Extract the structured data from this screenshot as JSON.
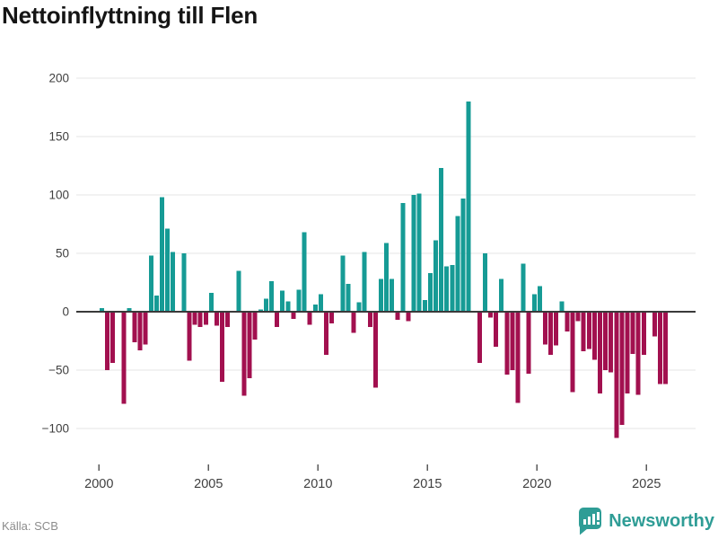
{
  "title": "Nettoinflyttning till Flen",
  "source": {
    "label": "Källa: SCB"
  },
  "branding": {
    "name": "Newsworthy",
    "icon": "newsworthy-pin-barchart-logo"
  },
  "colors": {
    "positive": "#169b95",
    "negative": "#a2104f",
    "grid": "#e6e6e6",
    "zero_line": "#3a3a3a",
    "axis_text": "#3f3f3f",
    "title_text": "#151515",
    "source_text": "#8c8c8c",
    "brand_teal": "#2f9d96"
  },
  "chart_data": {
    "type": "bar",
    "title": "Nettoinflyttning till Flen",
    "xlabel": "",
    "ylabel": "",
    "x_unit": "quarter",
    "x_start": "2000-Q1",
    "x_end": "2025-Q4",
    "ylim": [
      -110,
      200
    ],
    "grid": true,
    "legend": "none",
    "y_ticks": [
      200,
      150,
      100,
      50,
      0,
      -50,
      -100
    ],
    "y_tick_labels": [
      "200",
      "150",
      "100",
      "50",
      "0",
      "−50",
      "−100"
    ],
    "x_ticks": [
      2000,
      2005,
      2010,
      2015,
      2020,
      2025
    ],
    "x_tick_labels": [
      "2000",
      "2005",
      "2010",
      "2015",
      "2020",
      "2025"
    ],
    "series": [
      {
        "name": "Nettoinflyttning",
        "values": [
          3,
          -50,
          -44,
          0,
          -79,
          3,
          -26,
          -33,
          -28,
          48,
          14,
          98,
          71,
          51,
          0,
          50,
          -42,
          -11,
          -13,
          -11,
          16,
          -12,
          -60,
          -13,
          0,
          35,
          -72,
          -57,
          -24,
          2,
          11,
          26,
          -13,
          18,
          9,
          -6,
          19,
          68,
          -11,
          6,
          15,
          -37,
          -10,
          0,
          48,
          24,
          -18,
          8,
          51,
          -13,
          -65,
          28,
          59,
          28,
          -7,
          93,
          -8,
          100,
          101,
          10,
          33,
          61,
          123,
          39,
          40,
          82,
          97,
          180,
          0,
          -44,
          50,
          -5,
          -30,
          28,
          -54,
          -50,
          -78,
          41,
          -53,
          15,
          22,
          -28,
          -37,
          -29,
          9,
          -17,
          -69,
          -8,
          -34,
          -32,
          -41,
          -70,
          -50,
          -52,
          -108,
          -97,
          -70,
          -36,
          -71,
          -37,
          0,
          -21,
          -62,
          -62
        ]
      }
    ]
  }
}
